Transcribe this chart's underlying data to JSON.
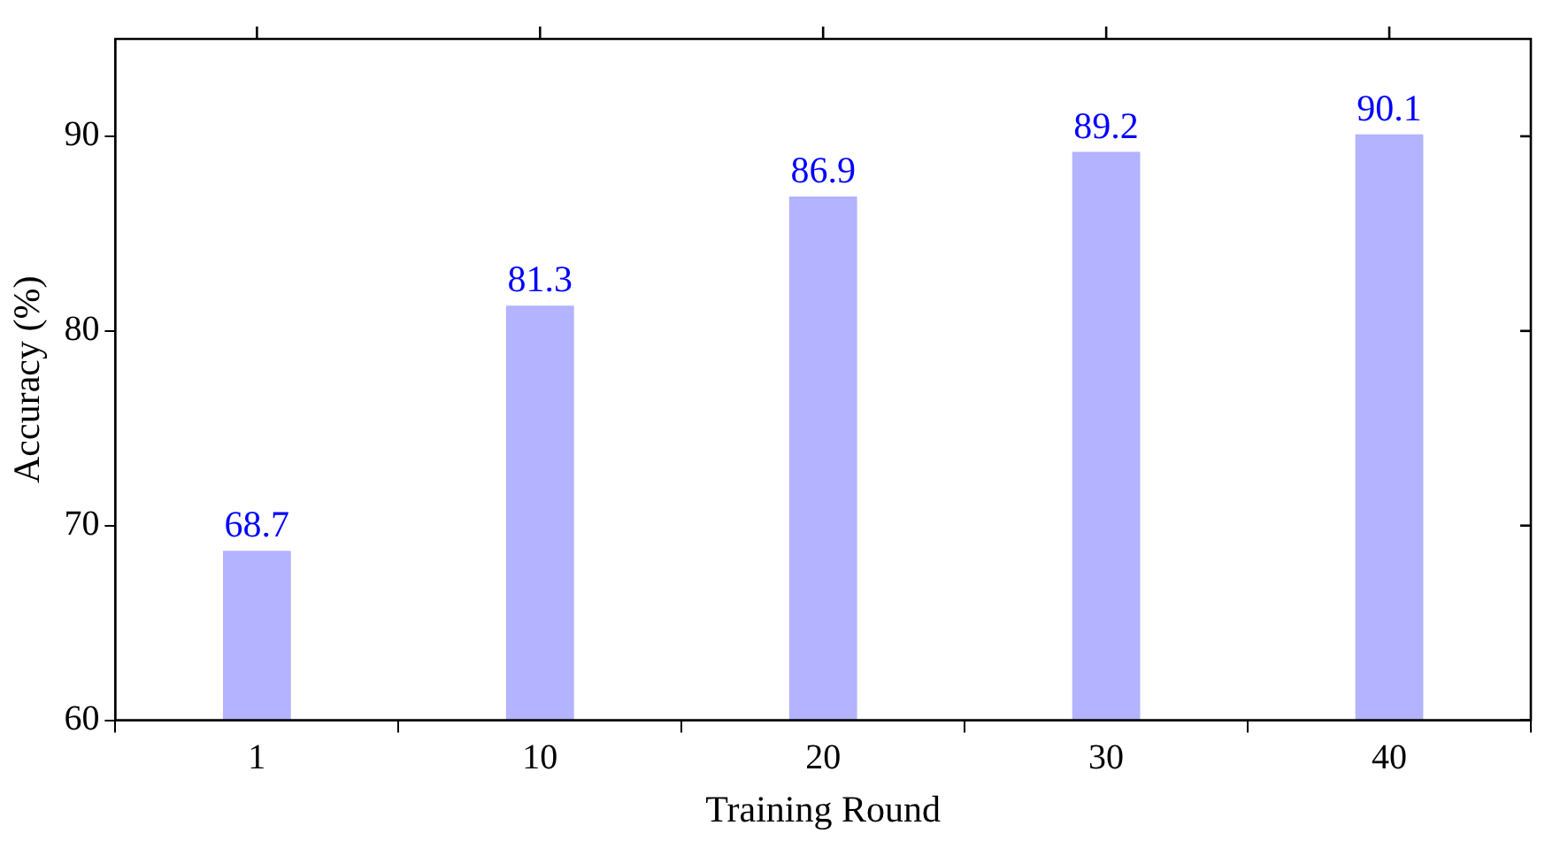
{
  "chart_data": {
    "type": "bar",
    "xlabel": "Training Round",
    "ylabel": "Accuracy (%)",
    "categories": [
      "1",
      "10",
      "20",
      "30",
      "40"
    ],
    "series": [
      {
        "color": "#b3b3ff",
        "values": [
          68.7,
          81.3,
          86.9,
          89.2,
          90.1
        ]
      }
    ],
    "ylim": [
      60,
      95
    ],
    "yticks": [
      60,
      70,
      80,
      90
    ],
    "grid": false,
    "legend": false,
    "data_labels": true
  }
}
